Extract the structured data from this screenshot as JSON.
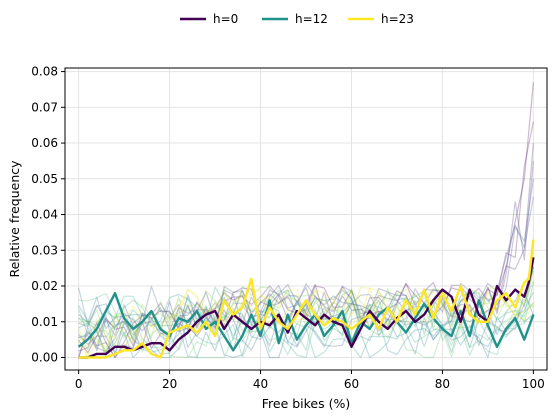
{
  "chart_data": {
    "type": "line",
    "title": "",
    "xlabel": "Free bikes (%)",
    "ylabel": "Relative frequency",
    "xlim": [
      -3,
      103
    ],
    "ylim": [
      -0.0035,
      0.081
    ],
    "xticks": [
      0,
      20,
      40,
      60,
      80,
      100
    ],
    "yticks": [
      0.0,
      0.01,
      0.02,
      0.03,
      0.04,
      0.05,
      0.06,
      0.07,
      0.08
    ],
    "ytick_labels": [
      "0.00",
      "0.01",
      "0.02",
      "0.03",
      "0.04",
      "0.05",
      "0.06",
      "0.07",
      "0.08"
    ],
    "grid": true,
    "legend": {
      "placement": "top-center",
      "entries": [
        {
          "label": "h=0",
          "color": "#440154"
        },
        {
          "label": "h=12",
          "color": "#21918c"
        },
        {
          "label": "h=23",
          "color": "#fde725"
        }
      ]
    },
    "background_series_colormap": "viridis",
    "background_series_count": 21,
    "highlighted_series": [
      {
        "name": "h=0",
        "color": "#440154",
        "x": [
          0,
          2,
          4,
          6,
          8,
          10,
          12,
          14,
          16,
          18,
          20,
          22,
          24,
          26,
          28,
          30,
          32,
          34,
          36,
          38,
          40,
          42,
          44,
          46,
          48,
          50,
          52,
          54,
          56,
          58,
          60,
          62,
          64,
          66,
          68,
          70,
          72,
          74,
          76,
          78,
          80,
          82,
          84,
          86,
          88,
          90,
          92,
          94,
          96,
          98,
          99,
          100
        ],
        "y": [
          0.0,
          0.0,
          0.001,
          0.001,
          0.003,
          0.003,
          0.002,
          0.003,
          0.004,
          0.004,
          0.002,
          0.005,
          0.007,
          0.01,
          0.012,
          0.013,
          0.008,
          0.012,
          0.01,
          0.008,
          0.01,
          0.009,
          0.012,
          0.007,
          0.013,
          0.011,
          0.009,
          0.012,
          0.01,
          0.009,
          0.003,
          0.008,
          0.013,
          0.01,
          0.008,
          0.011,
          0.013,
          0.01,
          0.012,
          0.016,
          0.019,
          0.017,
          0.01,
          0.019,
          0.012,
          0.01,
          0.02,
          0.016,
          0.019,
          0.017,
          0.021,
          0.028
        ]
      },
      {
        "name": "h=12",
        "color": "#21918c",
        "x": [
          0,
          2,
          4,
          6,
          8,
          10,
          12,
          14,
          16,
          18,
          20,
          22,
          24,
          26,
          28,
          30,
          32,
          34,
          36,
          38,
          40,
          42,
          44,
          46,
          48,
          50,
          52,
          54,
          56,
          58,
          60,
          62,
          64,
          66,
          68,
          70,
          72,
          74,
          76,
          78,
          80,
          82,
          84,
          86,
          88,
          90,
          92,
          94,
          96,
          98,
          100
        ],
        "y": [
          0.003,
          0.005,
          0.008,
          0.013,
          0.018,
          0.011,
          0.008,
          0.01,
          0.013,
          0.008,
          0.006,
          0.011,
          0.01,
          0.013,
          0.008,
          0.01,
          0.006,
          0.002,
          0.006,
          0.012,
          0.006,
          0.016,
          0.004,
          0.012,
          0.005,
          0.009,
          0.012,
          0.006,
          0.009,
          0.013,
          0.004,
          0.01,
          0.008,
          0.012,
          0.014,
          0.01,
          0.007,
          0.011,
          0.015,
          0.011,
          0.008,
          0.006,
          0.013,
          0.006,
          0.016,
          0.009,
          0.003,
          0.008,
          0.011,
          0.005,
          0.012
        ]
      },
      {
        "name": "h=23",
        "color": "#fde725",
        "x": [
          0,
          2,
          4,
          6,
          8,
          10,
          12,
          14,
          16,
          18,
          20,
          22,
          24,
          26,
          28,
          30,
          32,
          34,
          36,
          38,
          40,
          42,
          44,
          46,
          48,
          50,
          52,
          54,
          56,
          58,
          60,
          62,
          64,
          66,
          68,
          70,
          72,
          74,
          76,
          78,
          80,
          82,
          84,
          86,
          88,
          90,
          92,
          94,
          96,
          98,
          99,
          100
        ],
        "y": [
          0.0,
          0.0,
          0.0,
          0.0,
          0.001,
          0.002,
          0.002,
          0.004,
          0.001,
          0.0,
          0.007,
          0.008,
          0.009,
          0.007,
          0.01,
          0.006,
          0.016,
          0.012,
          0.014,
          0.022,
          0.008,
          0.014,
          0.01,
          0.008,
          0.012,
          0.016,
          0.012,
          0.009,
          0.011,
          0.01,
          0.008,
          0.01,
          0.012,
          0.008,
          0.014,
          0.01,
          0.016,
          0.012,
          0.019,
          0.011,
          0.018,
          0.013,
          0.02,
          0.012,
          0.01,
          0.01,
          0.016,
          0.018,
          0.014,
          0.021,
          0.022,
          0.033
        ]
      }
    ]
  }
}
